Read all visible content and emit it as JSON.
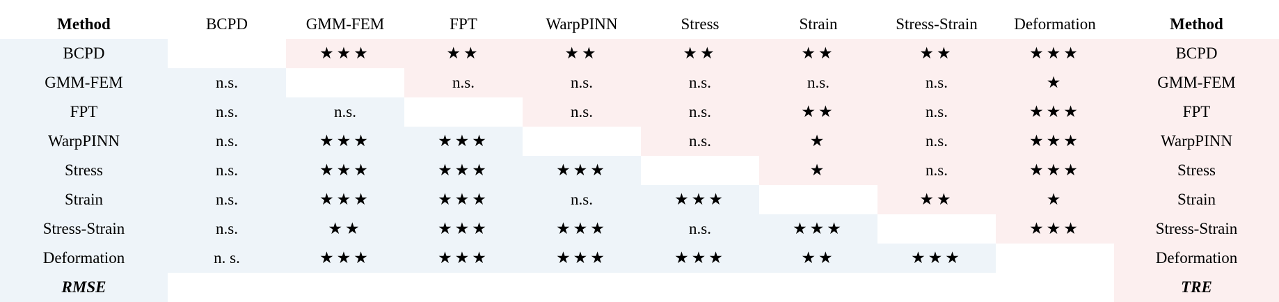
{
  "header": {
    "left_label": "Method",
    "right_label": "Method",
    "columns": [
      "BCPD",
      "GMM-FEM",
      "FPT",
      "WarpPINN",
      "Stress",
      "Strain",
      "Stress-Strain",
      "Deformation"
    ]
  },
  "rows": [
    {
      "label": "BCPD",
      "right_label": "BCPD",
      "cells": [
        "",
        "★★★",
        "★★",
        "★★",
        "★★",
        "★★",
        "★★",
        "★★★"
      ]
    },
    {
      "label": "GMM-FEM",
      "right_label": "GMM-FEM",
      "cells": [
        "n.s.",
        "",
        "n.s.",
        "n.s.",
        "n.s.",
        "n.s.",
        "n.s.",
        "★"
      ]
    },
    {
      "label": "FPT",
      "right_label": "FPT",
      "cells": [
        "n.s.",
        "n.s.",
        "",
        "n.s.",
        "n.s.",
        "★★",
        "n.s.",
        "★★★"
      ]
    },
    {
      "label": "WarpPINN",
      "right_label": "WarpPINN",
      "cells": [
        "n.s.",
        "★★★",
        "★★★",
        "",
        "n.s.",
        "★",
        "n.s.",
        "★★★"
      ]
    },
    {
      "label": "Stress",
      "right_label": "Stress",
      "cells": [
        "n.s.",
        "★★★",
        "★★★",
        "★★★",
        "",
        "★",
        "n.s.",
        "★★★"
      ]
    },
    {
      "label": "Strain",
      "right_label": "Strain",
      "cells": [
        "n.s.",
        "★★★",
        "★★★",
        "n.s.",
        "★★★",
        "",
        "★★",
        "★"
      ]
    },
    {
      "label": "Stress-Strain",
      "right_label": "Stress-Strain",
      "cells": [
        "n.s.",
        "★★",
        "★★★",
        "★★★",
        "n.s.",
        "★★★",
        "",
        "★★★"
      ]
    },
    {
      "label": "Deformation",
      "right_label": "Deformation",
      "cells": [
        "n. s.",
        "★★★",
        "★★★",
        "★★★",
        "★★★",
        "★★",
        "★★★",
        ""
      ]
    }
  ],
  "footer": {
    "left_label": "RMSE",
    "right_label": "TRE"
  },
  "colors": {
    "rmse_region": "#eef4f9",
    "tre_region": "#fcefef",
    "diagonal": "#ffffff"
  }
}
